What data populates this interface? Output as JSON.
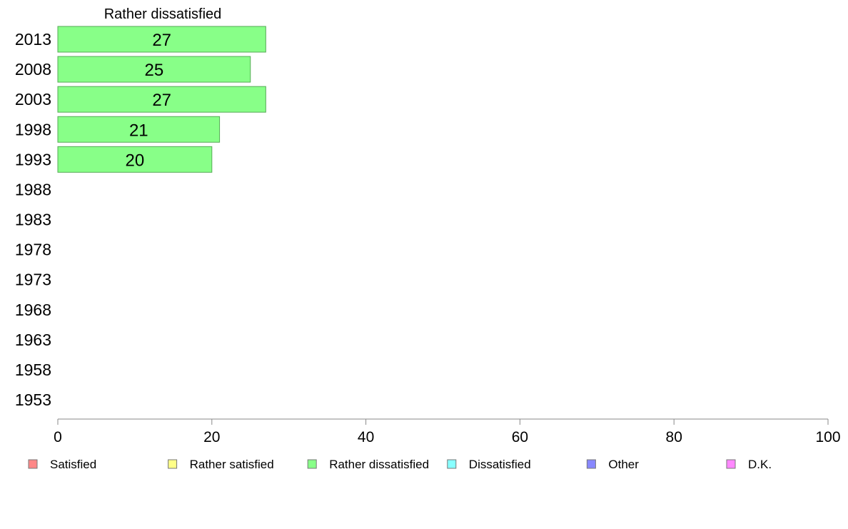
{
  "chart_data": {
    "type": "bar",
    "orientation": "horizontal",
    "title": "Rather dissatisfied",
    "categories": [
      "2013",
      "2008",
      "2003",
      "1998",
      "1993",
      "1988",
      "1983",
      "1978",
      "1973",
      "1968",
      "1963",
      "1958",
      "1953"
    ],
    "series": [
      {
        "name": "Rather dissatisfied",
        "color": "#88ff88",
        "values": [
          27,
          25,
          27,
          21,
          20,
          null,
          null,
          null,
          null,
          null,
          null,
          null,
          null
        ]
      }
    ],
    "xlim": [
      0,
      100
    ],
    "xticks": [
      0,
      20,
      40,
      60,
      80,
      100
    ],
    "grid": false,
    "legend": {
      "position": "bottom",
      "items": [
        {
          "label": "Satisfied",
          "color": "#ff8888"
        },
        {
          "label": "Rather satisfied",
          "color": "#ffff88"
        },
        {
          "label": "Rather dissatisfied",
          "color": "#88ff88"
        },
        {
          "label": "Dissatisfied",
          "color": "#88ffff"
        },
        {
          "label": "Other",
          "color": "#8888ff"
        },
        {
          "label": "D.K.",
          "color": "#ff88ff"
        }
      ]
    }
  }
}
